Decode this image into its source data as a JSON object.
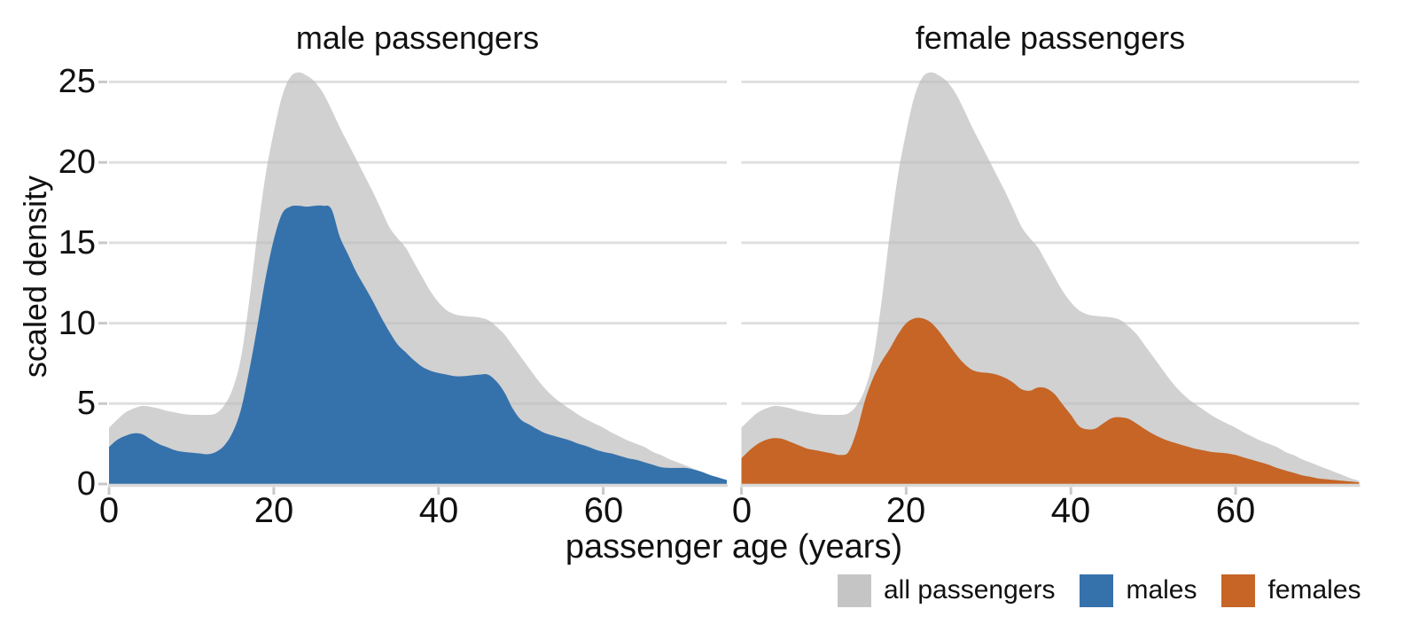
{
  "chart_data": {
    "type": "area",
    "description": "Kernel density estimates of Titanic passenger ages, faceted by sex, each overlaid on the density of all passengers",
    "xlabel": "passenger age (years)",
    "ylabel": "scaled density",
    "x_domain": [
      0,
      75
    ],
    "y_domain": [
      0,
      26.5
    ],
    "x_ticks": [
      0,
      20,
      40,
      60
    ],
    "y_ticks": [
      0,
      5,
      10,
      15,
      20,
      25
    ],
    "grid": "horizontal gridlines on",
    "legend_position": "bottom-right",
    "panels": [
      {
        "title": "male passengers",
        "series_keys": [
          "all_passengers",
          "males"
        ]
      },
      {
        "title": "female passengers",
        "series_keys": [
          "all_passengers",
          "females"
        ]
      }
    ],
    "series": {
      "all_passengers": {
        "label": "all passengers",
        "fill": "#bbbbbb",
        "fill_opacity": 0.68,
        "legend_color": "#c5c5c5",
        "x_start": 0,
        "x_step": 1,
        "values": [
          3.5,
          4.0,
          4.45,
          4.7,
          4.85,
          4.8,
          4.7,
          4.55,
          4.45,
          4.35,
          4.3,
          4.3,
          4.3,
          4.4,
          4.9,
          5.9,
          7.8,
          11.3,
          15.5,
          19.2,
          21.9,
          24.1,
          25.3,
          25.6,
          25.4,
          25.0,
          24.3,
          23.3,
          22.2,
          21.2,
          20.2,
          19.2,
          18.2,
          17.1,
          16.0,
          15.3,
          14.7,
          13.8,
          12.9,
          12.0,
          11.3,
          10.8,
          10.55,
          10.45,
          10.4,
          10.35,
          10.2,
          9.8,
          9.3,
          8.6,
          7.9,
          7.2,
          6.5,
          5.9,
          5.4,
          5.0,
          4.65,
          4.3,
          4.0,
          3.75,
          3.5,
          3.2,
          2.95,
          2.7,
          2.5,
          2.3,
          2.0,
          1.8,
          1.55,
          1.35,
          1.15,
          0.95,
          0.75,
          0.55,
          0.35,
          0.2
        ]
      },
      "males": {
        "label": "males",
        "fill": "#3572ac",
        "fill_opacity": 1,
        "legend_color": "#3572ac",
        "x_start": 0,
        "x_step": 1,
        "values": [
          2.3,
          2.75,
          3.0,
          3.15,
          3.1,
          2.8,
          2.5,
          2.3,
          2.1,
          2.0,
          1.95,
          1.9,
          1.85,
          2.0,
          2.4,
          3.2,
          4.6,
          7.0,
          9.8,
          12.8,
          15.2,
          16.8,
          17.25,
          17.3,
          17.25,
          17.3,
          17.3,
          17.1,
          15.4,
          14.3,
          13.2,
          12.3,
          11.4,
          10.4,
          9.5,
          8.7,
          8.2,
          7.7,
          7.3,
          7.05,
          6.9,
          6.8,
          6.7,
          6.7,
          6.75,
          6.8,
          6.8,
          6.4,
          5.7,
          4.7,
          4.0,
          3.7,
          3.4,
          3.15,
          3.0,
          2.85,
          2.7,
          2.5,
          2.35,
          2.15,
          2.0,
          1.9,
          1.75,
          1.6,
          1.5,
          1.35,
          1.2,
          1.05,
          1.0,
          1.0,
          1.0,
          0.9,
          0.75,
          0.55,
          0.4,
          0.25
        ]
      },
      "females": {
        "label": "females",
        "fill": "#c66526",
        "fill_opacity": 1,
        "legend_color": "#c66526",
        "x_start": 0,
        "x_step": 1,
        "values": [
          1.6,
          2.1,
          2.5,
          2.75,
          2.85,
          2.8,
          2.6,
          2.4,
          2.2,
          2.1,
          2.0,
          1.9,
          1.8,
          2.0,
          3.3,
          5.2,
          6.6,
          7.6,
          8.4,
          9.3,
          10.0,
          10.3,
          10.3,
          10.05,
          9.5,
          8.8,
          8.1,
          7.5,
          7.1,
          6.95,
          6.9,
          6.8,
          6.6,
          6.3,
          5.9,
          5.8,
          6.0,
          5.95,
          5.6,
          4.95,
          4.3,
          3.6,
          3.4,
          3.45,
          3.8,
          4.1,
          4.15,
          4.05,
          3.75,
          3.4,
          3.1,
          2.85,
          2.65,
          2.5,
          2.35,
          2.2,
          2.1,
          2.0,
          1.95,
          1.9,
          1.8,
          1.65,
          1.5,
          1.35,
          1.2,
          1.0,
          0.85,
          0.7,
          0.55,
          0.45,
          0.35,
          0.3,
          0.25,
          0.2,
          0.15,
          0.1
        ]
      }
    },
    "legend": [
      "all_passengers",
      "males",
      "females"
    ],
    "colors": {
      "background": "#ffffff",
      "gridline": "#dfdfdf",
      "axis_line": "#d8d8d8",
      "tick_mark": "#c9c9c9",
      "text": "#111111"
    }
  }
}
